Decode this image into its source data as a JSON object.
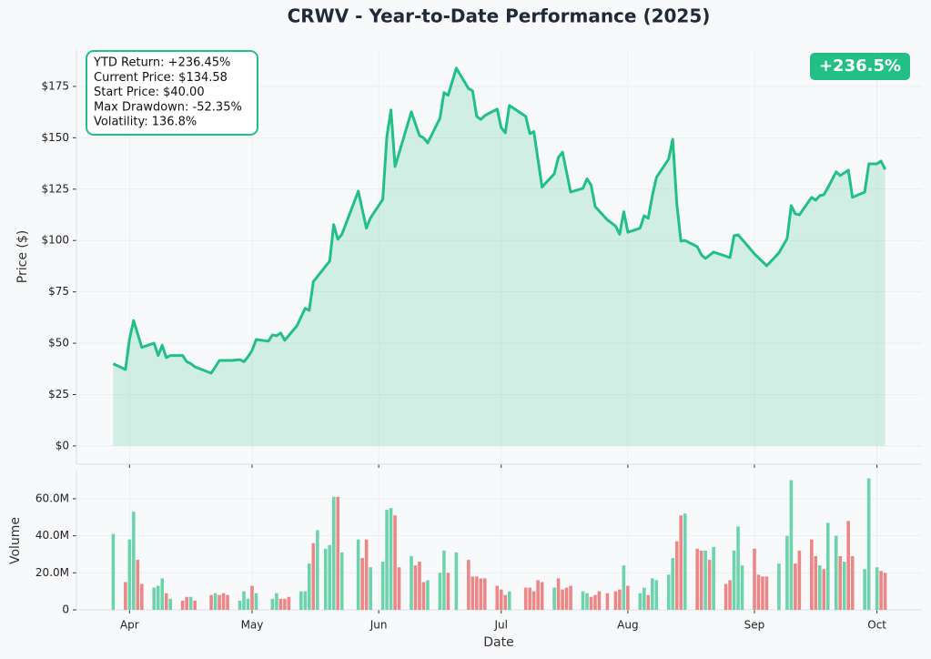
{
  "chart_data": [
    {
      "type": "line",
      "title": "CRWV - Year-to-Date Performance (2025)",
      "ylabel": "Price ($)",
      "annotations": [
        "YTD Return: +236.45%",
        "Current Price: $134.58",
        "Start Price: $40.00",
        "Max Drawdown: -52.35%",
        "Volatility: 136.8%"
      ],
      "badge": "+236.5%",
      "x": [
        87,
        90,
        91,
        92,
        94,
        97,
        98,
        99,
        100,
        101,
        104,
        105,
        106,
        107,
        111,
        113,
        116,
        118,
        119,
        120,
        121,
        122,
        125,
        126,
        127,
        128,
        129,
        132,
        134,
        135,
        136,
        140,
        141,
        142,
        143,
        147,
        149,
        150,
        153,
        154,
        155,
        156,
        160,
        162,
        163,
        164,
        167,
        168,
        169,
        171,
        174,
        175,
        176,
        177,
        178,
        181,
        182,
        183,
        184,
        188,
        189,
        190,
        192,
        195,
        196,
        197,
        199,
        202,
        203,
        204,
        205,
        208,
        210,
        211,
        212,
        213,
        216,
        217,
        218,
        219,
        220,
        223,
        224,
        225,
        226,
        227,
        230,
        231,
        232,
        234,
        238,
        239,
        240,
        244,
        247,
        250,
        252,
        253,
        254,
        255,
        258,
        259,
        260,
        261,
        262,
        264,
        265,
        267,
        268,
        271,
        272,
        274,
        275,
        276
      ],
      "xlim": [
        78,
        285
      ],
      "ylim": [
        -8.9,
        192.7
      ],
      "yticks": [
        {
          "value": 0,
          "label": "$0"
        },
        {
          "value": 25,
          "label": "$25"
        },
        {
          "value": 50,
          "label": "$50"
        },
        {
          "value": 75,
          "label": "$75"
        },
        {
          "value": 100,
          "label": "$100"
        },
        {
          "value": 125,
          "label": "$125"
        },
        {
          "value": 150,
          "label": "$150"
        },
        {
          "value": 175,
          "label": "$175"
        }
      ],
      "grid": true,
      "fill": true,
      "badge_color": "#22bf87",
      "series": [
        {
          "color": "#22bf87",
          "values": [
            40.0,
            37.2,
            52.0,
            61.0,
            48.0,
            50.0,
            44.0,
            49.0,
            43.0,
            44.0,
            44.0,
            41.0,
            40.0,
            38.5,
            35.4,
            41.6,
            41.6,
            42.0,
            41.0,
            43.4,
            46.5,
            51.8,
            51.0,
            54.0,
            53.6,
            55.0,
            51.4,
            58.5,
            67.0,
            66.0,
            80.0,
            90.0,
            107.7,
            100.6,
            103.0,
            124.0,
            106.0,
            111.0,
            120.0,
            150.6,
            163.5,
            136.0,
            162.6,
            151.0,
            150.0,
            147.5,
            159.5,
            172.0,
            170.7,
            183.9,
            174.0,
            172.8,
            160.4,
            159.0,
            160.8,
            164.0,
            155.0,
            152.4,
            165.7,
            160.4,
            152.0,
            153.0,
            126.0,
            132.5,
            140.5,
            143.0,
            123.6,
            125.4,
            130.0,
            127.0,
            116.5,
            110.0,
            107.0,
            103.0,
            114.0,
            104.0,
            106.0,
            112.0,
            110.8,
            121.8,
            130.7,
            139.6,
            149.3,
            117.8,
            99.7,
            100.0,
            97.0,
            93.0,
            91.3,
            94.4,
            91.7,
            102.3,
            102.8,
            93.5,
            87.7,
            94.0,
            101.0,
            117.0,
            113.0,
            112.5,
            121.0,
            119.6,
            121.8,
            122.3,
            125.8,
            133.4,
            131.6,
            134.2,
            121.0,
            123.6,
            137.3,
            137.3,
            138.7,
            134.58
          ]
        }
      ]
    },
    {
      "type": "bar",
      "xlabel": "Date",
      "ylabel": "Volume",
      "x": [
        87,
        90,
        91,
        92,
        93,
        94,
        97,
        98,
        99,
        100,
        101,
        104,
        105,
        106,
        107,
        111,
        112,
        113,
        114,
        115,
        118,
        119,
        120,
        121,
        122,
        126,
        127,
        128,
        129,
        130,
        133,
        134,
        135,
        136,
        137,
        139,
        140,
        141,
        142,
        143,
        147,
        148,
        149,
        150,
        153,
        154,
        155,
        156,
        157,
        160,
        161,
        162,
        163,
        164,
        167,
        168,
        169,
        171,
        174,
        175,
        176,
        177,
        178,
        181,
        182,
        183,
        184,
        188,
        189,
        190,
        191,
        192,
        195,
        196,
        197,
        198,
        199,
        202,
        203,
        204,
        205,
        206,
        208,
        210,
        211,
        212,
        213,
        216,
        217,
        218,
        219,
        220,
        223,
        224,
        225,
        226,
        227,
        230,
        231,
        232,
        233,
        234,
        237,
        238,
        239,
        240,
        241,
        244,
        245,
        246,
        247,
        250,
        252,
        253,
        254,
        255,
        258,
        259,
        260,
        261,
        262,
        264,
        265,
        266,
        267,
        268,
        271,
        272,
        274,
        275,
        276
      ],
      "xlim": [
        78,
        285
      ],
      "xticks": [
        {
          "value": 91,
          "label": "Apr"
        },
        {
          "value": 121,
          "label": "May"
        },
        {
          "value": 152,
          "label": "Jun"
        },
        {
          "value": 182,
          "label": "Jul"
        },
        {
          "value": 213,
          "label": "Aug"
        },
        {
          "value": 244,
          "label": "Sep"
        },
        {
          "value": 274,
          "label": "Oct"
        }
      ],
      "ylim": [
        0,
        75.2
      ],
      "yticks": [
        0,
        {
          "value": 20,
          "label": "20.0M"
        },
        {
          "value": 40,
          "label": "40.0M"
        },
        {
          "value": 60,
          "label": "60.0M"
        }
      ],
      "grid": true,
      "series": [
        {
          "values": [
            41,
            15,
            38,
            53,
            27,
            14,
            12,
            13,
            17,
            9,
            6,
            5,
            7,
            7,
            5,
            8,
            9,
            8,
            9,
            8,
            5,
            10,
            6,
            13,
            9,
            6,
            9,
            6,
            6,
            7,
            10,
            10,
            25,
            36,
            43,
            33,
            35,
            61,
            61,
            31,
            38,
            28,
            38,
            23,
            26,
            54,
            55,
            51,
            23,
            29,
            24,
            26,
            15,
            16,
            20,
            32,
            20,
            31,
            27,
            18,
            18,
            17,
            17,
            13,
            11,
            8,
            10,
            12,
            12,
            10,
            16,
            15,
            12,
            17,
            11,
            12,
            13,
            10,
            9,
            7,
            8,
            10,
            9,
            10,
            11,
            24,
            13,
            9,
            12,
            8,
            17,
            16,
            19,
            28,
            37,
            51,
            52,
            33,
            32,
            32,
            27,
            34,
            14,
            16,
            32,
            45,
            24,
            33,
            19,
            18,
            18,
            25,
            40,
            70,
            25,
            32,
            38,
            29,
            24,
            22,
            47,
            40,
            29,
            26,
            48,
            29,
            22,
            71,
            23,
            21,
            20
          ],
          "colors": [
            "#6dd3ac",
            "#ec8787",
            "#6dd3ac",
            "#6dd3ac",
            "#ec8787",
            "#ec8787",
            "#6dd3ac",
            "#6dd3ac",
            "#6dd3ac",
            "#ec8787",
            "#6dd3ac",
            "#ec8787",
            "#ec8787",
            "#6dd3ac",
            "#ec8787",
            "#ec8787",
            "#6dd3ac",
            "#ec8787",
            "#ec8787",
            "#ec8787",
            "#6dd3ac",
            "#6dd3ac",
            "#6dd3ac",
            "#ec8787",
            "#6dd3ac",
            "#6dd3ac",
            "#6dd3ac",
            "#ec8787",
            "#ec8787",
            "#ec8787",
            "#6dd3ac",
            "#6dd3ac",
            "#6dd3ac",
            "#ec8787",
            "#6dd3ac",
            "#6dd3ac",
            "#6dd3ac",
            "#6dd3ac",
            "#ec8787",
            "#6dd3ac",
            "#6dd3ac",
            "#ec8787",
            "#ec8787",
            "#6dd3ac",
            "#6dd3ac",
            "#6dd3ac",
            "#6dd3ac",
            "#ec8787",
            "#ec8787",
            "#6dd3ac",
            "#ec8787",
            "#ec8787",
            "#ec8787",
            "#6dd3ac",
            "#6dd3ac",
            "#6dd3ac",
            "#ec8787",
            "#6dd3ac",
            "#ec8787",
            "#ec8787",
            "#ec8787",
            "#ec8787",
            "#ec8787",
            "#ec8787",
            "#ec8787",
            "#ec8787",
            "#6dd3ac",
            "#ec8787",
            "#ec8787",
            "#ec8787",
            "#ec8787",
            "#ec8787",
            "#6dd3ac",
            "#ec8787",
            "#ec8787",
            "#ec8787",
            "#ec8787",
            "#6dd3ac",
            "#6dd3ac",
            "#ec8787",
            "#ec8787",
            "#ec8787",
            "#ec8787",
            "#ec8787",
            "#ec8787",
            "#6dd3ac",
            "#ec8787",
            "#6dd3ac",
            "#6dd3ac",
            "#ec8787",
            "#6dd3ac",
            "#6dd3ac",
            "#6dd3ac",
            "#6dd3ac",
            "#ec8787",
            "#ec8787",
            "#6dd3ac",
            "#ec8787",
            "#ec8787",
            "#6dd3ac",
            "#ec8787",
            "#6dd3ac",
            "#ec8787",
            "#ec8787",
            "#6dd3ac",
            "#6dd3ac",
            "#6dd3ac",
            "#ec8787",
            "#ec8787",
            "#ec8787",
            "#ec8787",
            "#6dd3ac",
            "#6dd3ac",
            "#6dd3ac",
            "#ec8787",
            "#ec8787",
            "#ec8787",
            "#ec8787",
            "#6dd3ac",
            "#ec8787",
            "#6dd3ac",
            "#6dd3ac",
            "#ec8787",
            "#6dd3ac",
            "#ec8787",
            "#ec8787",
            "#6dd3ac",
            "#6dd3ac",
            "#6dd3ac",
            "#ec8787",
            "#ec8787"
          ]
        }
      ]
    }
  ]
}
